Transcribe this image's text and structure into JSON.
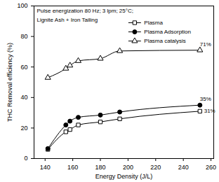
{
  "chart_data": {
    "type": "line",
    "x_label": "Energy Density (J/L)",
    "y_label": "THC Removal efficiency (%)",
    "x": [
      142,
      155,
      158,
      164,
      180,
      194,
      252
    ],
    "series": [
      {
        "name": "Plasma",
        "color": "#000000",
        "marker": "square-open",
        "values": [
          6,
          17.5,
          19,
          22,
          24,
          26,
          31
        ]
      },
      {
        "name": "Plasma Adsorption",
        "color": "#000000",
        "marker": "circle",
        "values": [
          6.5,
          22,
          24.5,
          27,
          28.5,
          30.5,
          35
        ]
      },
      {
        "name": "Plasma catalysis",
        "color": "#000000",
        "marker": "triangle-open",
        "values": [
          53,
          59,
          61,
          64,
          65.5,
          70.5,
          71
        ]
      }
    ],
    "annotations": [
      {
        "text": "Pulse energization 80 Hz; 3 lpm; 25°C;",
        "x": 134,
        "y": 97
      },
      {
        "text": "Lignite Ash + Iron Tailing",
        "x": 134,
        "y": 91
      },
      {
        "text": "71%",
        "x": 252,
        "y": 75
      },
      {
        "text": "35%",
        "x": 252,
        "y": 39
      },
      {
        "text": "31%",
        "x": 255,
        "y": 31
      }
    ],
    "xlim": [
      132,
      262
    ],
    "xticks": [
      140,
      160,
      180,
      200,
      220,
      240,
      260
    ],
    "ylim": [
      0,
      100
    ],
    "yticks": [
      0,
      20,
      40,
      60,
      80,
      100
    ],
    "legend": "top-right",
    "grid": false
  }
}
